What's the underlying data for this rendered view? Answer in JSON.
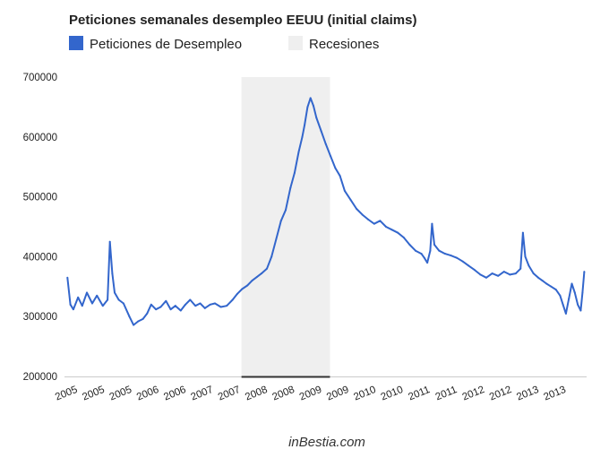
{
  "chart_data": {
    "type": "line",
    "title": "Peticiones semanales desempleo EEUU (initial claims)",
    "series": [
      {
        "name": "Peticiones de Desempleo",
        "color": "#3366cc",
        "points": [
          [
            2005.0,
            365000
          ],
          [
            2005.05,
            320000
          ],
          [
            2005.1,
            312000
          ],
          [
            2005.18,
            332000
          ],
          [
            2005.25,
            318000
          ],
          [
            2005.33,
            340000
          ],
          [
            2005.42,
            322000
          ],
          [
            2005.5,
            335000
          ],
          [
            2005.6,
            318000
          ],
          [
            2005.68,
            328000
          ],
          [
            2005.72,
            425000
          ],
          [
            2005.76,
            372000
          ],
          [
            2005.8,
            340000
          ],
          [
            2005.87,
            328000
          ],
          [
            2005.95,
            322000
          ],
          [
            2006.05,
            300000
          ],
          [
            2006.12,
            286000
          ],
          [
            2006.2,
            292000
          ],
          [
            2006.28,
            296000
          ],
          [
            2006.35,
            305000
          ],
          [
            2006.42,
            320000
          ],
          [
            2006.5,
            312000
          ],
          [
            2006.58,
            316000
          ],
          [
            2006.67,
            326000
          ],
          [
            2006.75,
            312000
          ],
          [
            2006.83,
            318000
          ],
          [
            2006.92,
            310000
          ],
          [
            2007.0,
            320000
          ],
          [
            2007.08,
            328000
          ],
          [
            2007.17,
            318000
          ],
          [
            2007.25,
            322000
          ],
          [
            2007.33,
            314000
          ],
          [
            2007.42,
            320000
          ],
          [
            2007.5,
            322000
          ],
          [
            2007.6,
            316000
          ],
          [
            2007.7,
            318000
          ],
          [
            2007.8,
            328000
          ],
          [
            2007.88,
            338000
          ],
          [
            2007.96,
            346000
          ],
          [
            2008.05,
            352000
          ],
          [
            2008.13,
            360000
          ],
          [
            2008.21,
            366000
          ],
          [
            2008.29,
            372000
          ],
          [
            2008.38,
            380000
          ],
          [
            2008.46,
            400000
          ],
          [
            2008.54,
            430000
          ],
          [
            2008.62,
            460000
          ],
          [
            2008.7,
            478000
          ],
          [
            2008.78,
            515000
          ],
          [
            2008.85,
            540000
          ],
          [
            2008.92,
            575000
          ],
          [
            2008.98,
            600000
          ],
          [
            2009.02,
            620000
          ],
          [
            2009.07,
            650000
          ],
          [
            2009.12,
            665000
          ],
          [
            2009.17,
            652000
          ],
          [
            2009.22,
            632000
          ],
          [
            2009.3,
            610000
          ],
          [
            2009.38,
            588000
          ],
          [
            2009.46,
            568000
          ],
          [
            2009.54,
            548000
          ],
          [
            2009.62,
            535000
          ],
          [
            2009.7,
            510000
          ],
          [
            2009.8,
            495000
          ],
          [
            2009.9,
            480000
          ],
          [
            2010.0,
            470000
          ],
          [
            2010.1,
            462000
          ],
          [
            2010.2,
            455000
          ],
          [
            2010.3,
            460000
          ],
          [
            2010.4,
            450000
          ],
          [
            2010.5,
            445000
          ],
          [
            2010.6,
            440000
          ],
          [
            2010.7,
            432000
          ],
          [
            2010.8,
            420000
          ],
          [
            2010.9,
            410000
          ],
          [
            2011.0,
            405000
          ],
          [
            2011.05,
            398000
          ],
          [
            2011.1,
            390000
          ],
          [
            2011.15,
            410000
          ],
          [
            2011.18,
            455000
          ],
          [
            2011.22,
            420000
          ],
          [
            2011.3,
            410000
          ],
          [
            2011.4,
            405000
          ],
          [
            2011.5,
            402000
          ],
          [
            2011.6,
            398000
          ],
          [
            2011.7,
            392000
          ],
          [
            2011.8,
            385000
          ],
          [
            2011.9,
            378000
          ],
          [
            2012.0,
            370000
          ],
          [
            2012.1,
            365000
          ],
          [
            2012.2,
            372000
          ],
          [
            2012.3,
            368000
          ],
          [
            2012.4,
            375000
          ],
          [
            2012.5,
            370000
          ],
          [
            2012.6,
            372000
          ],
          [
            2012.68,
            380000
          ],
          [
            2012.72,
            440000
          ],
          [
            2012.76,
            400000
          ],
          [
            2012.82,
            385000
          ],
          [
            2012.9,
            372000
          ],
          [
            2012.98,
            365000
          ],
          [
            2013.05,
            360000
          ],
          [
            2013.12,
            355000
          ],
          [
            2013.2,
            350000
          ],
          [
            2013.28,
            345000
          ],
          [
            2013.35,
            335000
          ],
          [
            2013.4,
            320000
          ],
          [
            2013.45,
            305000
          ],
          [
            2013.5,
            330000
          ],
          [
            2013.55,
            355000
          ],
          [
            2013.6,
            340000
          ],
          [
            2013.65,
            320000
          ],
          [
            2013.7,
            310000
          ],
          [
            2013.73,
            340000
          ],
          [
            2013.76,
            375000
          ]
        ]
      }
    ],
    "recession": {
      "name": "Recesiones",
      "color": "#efefef",
      "start": 2007.95,
      "end": 2009.45
    },
    "x_ticks": [
      {
        "pos": 2005.0,
        "label": "2005"
      },
      {
        "pos": 2005.46,
        "label": "2005"
      },
      {
        "pos": 2005.92,
        "label": "2005"
      },
      {
        "pos": 2006.38,
        "label": "2006"
      },
      {
        "pos": 2006.84,
        "label": "2006"
      },
      {
        "pos": 2007.3,
        "label": "2007"
      },
      {
        "pos": 2007.76,
        "label": "2007"
      },
      {
        "pos": 2008.22,
        "label": "2008"
      },
      {
        "pos": 2008.68,
        "label": "2008"
      },
      {
        "pos": 2009.14,
        "label": "2009"
      },
      {
        "pos": 2009.6,
        "label": "2009"
      },
      {
        "pos": 2010.06,
        "label": "2010"
      },
      {
        "pos": 2010.52,
        "label": "2010"
      },
      {
        "pos": 2010.98,
        "label": "2011"
      },
      {
        "pos": 2011.44,
        "label": "2011"
      },
      {
        "pos": 2011.9,
        "label": "2012"
      },
      {
        "pos": 2012.36,
        "label": "2012"
      },
      {
        "pos": 2012.82,
        "label": "2013"
      },
      {
        "pos": 2013.28,
        "label": "2013"
      }
    ],
    "xlim": [
      2004.95,
      2013.8
    ],
    "ylim": [
      200000,
      700000
    ],
    "y_ticks": [
      {
        "value": 200000,
        "label": "200000"
      },
      {
        "value": 300000,
        "label": "300000"
      },
      {
        "value": 400000,
        "label": "400000"
      },
      {
        "value": 500000,
        "label": "500000"
      },
      {
        "value": 600000,
        "label": "600000"
      },
      {
        "value": 700000,
        "label": "700000"
      }
    ],
    "grid": false,
    "legend_position": "top-left"
  },
  "source_label": "inBestia.com"
}
